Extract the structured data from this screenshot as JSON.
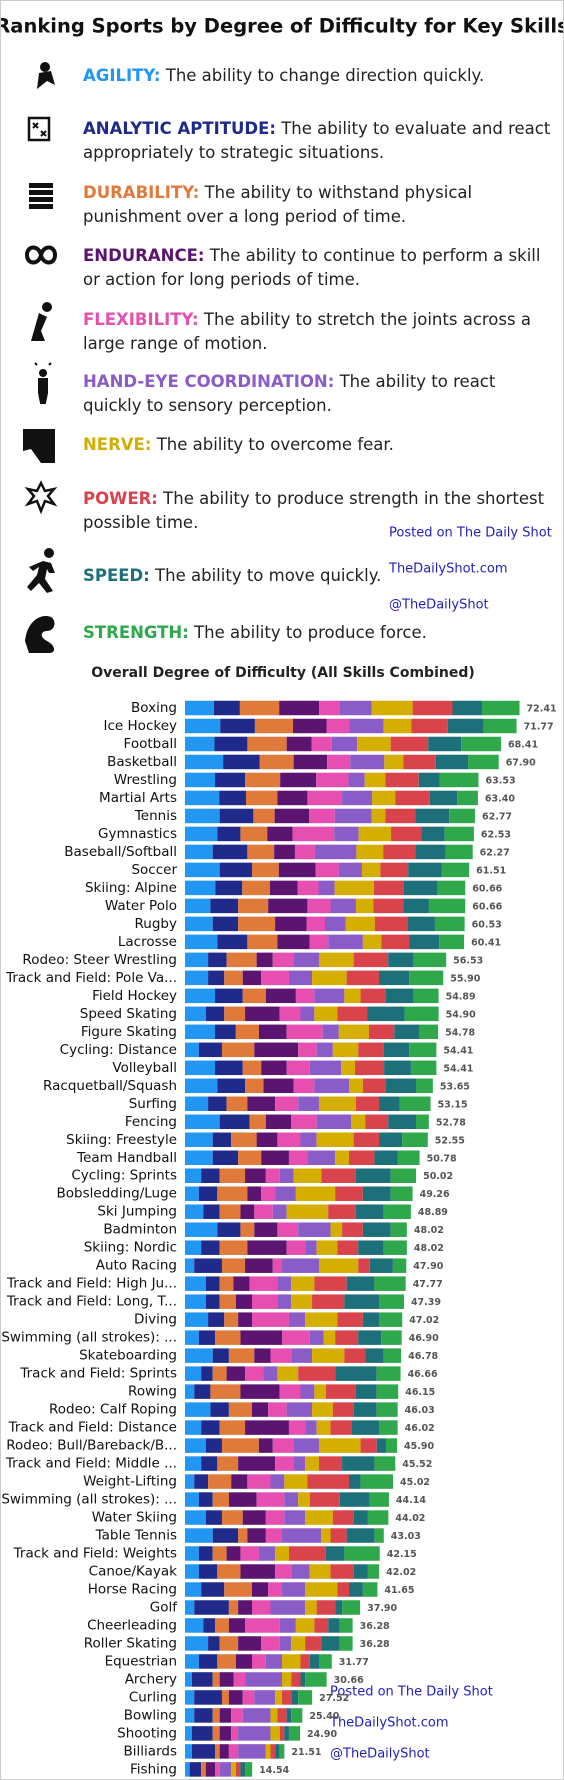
{
  "title": "Ranking Sports by Degree of Difficulty for Key Skills",
  "watermark": [
    "Posted on The Daily Shot",
    "TheDailyShot.com",
    "@TheDailyShot"
  ],
  "chart_data": {
    "type": "stacked_bar_horizontal",
    "title": "Overall Degree of Difficulty (All Skills Combined)",
    "categories": [
      "Boxing",
      "Ice Hockey",
      "Football",
      "Basketball",
      "Wrestling",
      "Martial Arts",
      "Tennis",
      "Gymnastics",
      "Baseball/Softball",
      "Soccer",
      "Skiing: Alpine",
      "Water Polo",
      "Rugby",
      "Lacrosse",
      "Rodeo: Steer Wrestling",
      "Track and Field: Pole Va...",
      "Field Hockey",
      "Speed Skating",
      "Figure Skating",
      "Cycling: Distance",
      "Volleyball",
      "Racquetball/Squash",
      "Surfing",
      "Fencing",
      "Skiing: Freestyle",
      "Team Handball",
      "Cycling: Sprints",
      "Bobsledding/Luge",
      "Ski Jumping",
      "Badminton",
      "Skiing: Nordic",
      "Auto Racing",
      "Track and Field: High Ju...",
      "Track and Field: Long, T...",
      "Diving",
      "Swimming (all strokes): ...",
      "Skateboarding",
      "Track and Field: Sprints",
      "Rowing",
      "Rodeo: Calf Roping",
      "Track and Field: Distance",
      "Rodeo: Bull/Bareback/B...",
      "Track and Field: Middle ...",
      "Weight-Lifting",
      "Swimming (all strokes): ...",
      "Water Skiing",
      "Table Tennis",
      "Track and Field: Weights",
      "Canoe/Kayak",
      "Horse Racing",
      "Golf",
      "Cheerleading",
      "Roller Skating",
      "Equestrian",
      "Archery",
      "Curling",
      "Bowling",
      "Shooting",
      "Billiards",
      "Fishing"
    ],
    "total_labels": [
      "72.41",
      "71.77",
      "68.41",
      "67.90",
      "63.53",
      "63.40",
      "62.77",
      "62.53",
      "62.27",
      "61.51",
      "60.66",
      "60.66",
      "60.53",
      "60.41",
      "56.53",
      "55.90",
      "54.89",
      "54.90",
      "54.78",
      "54.41",
      "54.41",
      "53.65",
      "53.15",
      "52.78",
      "52.55",
      "50.78",
      "50.02",
      "49.26",
      "48.89",
      "48.02",
      "48.02",
      "47.90",
      "47.77",
      "47.39",
      "47.02",
      "46.90",
      "46.78",
      "46.66",
      "46.15",
      "46.03",
      "46.02",
      "45.90",
      "45.52",
      "45.02",
      "44.14",
      "44.02",
      "43.03",
      "42.15",
      "42.02",
      "41.65",
      "37.90",
      "36.28",
      "36.28",
      "31.77",
      "30.66",
      "27.52",
      "25.40",
      "24.90",
      "21.51",
      "14.54"
    ],
    "series": [
      {
        "name": "AGILITY:",
        "description": "The ability to change direction quickly.",
        "color": "#2196f3",
        "values": [
          6.25,
          7.63,
          6.38,
          8.25,
          6.5,
          7.4,
          7.5,
          7.0,
          6.0,
          7.5,
          6.6,
          5.5,
          6.0,
          7.0,
          5.0,
          5.0,
          6.5,
          4.5,
          6.5,
          3.0,
          6.5,
          7.0,
          5.0,
          7.5,
          6.0,
          6.0,
          3.5,
          3.0,
          4.0,
          7.0,
          3.5,
          2.0,
          4.5,
          4.5,
          5.0,
          3.0,
          6.0,
          3.5,
          2.0,
          5.5,
          3.5,
          4.5,
          3.5,
          2.0,
          3.0,
          4.5,
          6.0,
          3.0,
          3.0,
          3.5,
          2.0,
          4.0,
          5.0,
          3.0,
          1.5,
          2.0,
          2.0,
          1.5,
          1.5,
          1.0
        ]
      },
      {
        "name": "ANALYTIC APTITUDE:",
        "description": "The ability to evaluate and react appropriately to strategic situations.",
        "color": "#1f2a8a",
        "values": [
          5.63,
          7.5,
          7.13,
          7.88,
          6.5,
          5.8,
          7.3,
          5.0,
          7.5,
          7.0,
          5.8,
          6.0,
          5.5,
          6.5,
          4.0,
          3.5,
          6.0,
          4.0,
          4.5,
          5.0,
          6.0,
          6.0,
          4.0,
          6.5,
          4.0,
          5.5,
          4.0,
          4.0,
          3.5,
          5.0,
          4.0,
          6.0,
          3.0,
          3.0,
          3.5,
          3.5,
          3.5,
          2.5,
          3.5,
          4.0,
          4.0,
          3.5,
          3.5,
          3.0,
          3.0,
          3.5,
          5.5,
          3.0,
          4.0,
          5.0,
          7.5,
          2.5,
          2.5,
          4.0,
          4.5,
          6.0,
          4.0,
          4.5,
          5.0,
          2.5
        ]
      },
      {
        "name": "DURABILITY:",
        "description": "The ability to withstand physical punishment over a long period of time.",
        "color": "#e07a3a",
        "values": [
          8.5,
          8.25,
          8.5,
          7.38,
          7.6,
          6.8,
          4.6,
          5.8,
          5.8,
          5.8,
          6.0,
          6.5,
          8.0,
          6.5,
          6.5,
          4.0,
          5.0,
          4.5,
          5.0,
          7.0,
          4.0,
          4.0,
          4.5,
          3.5,
          5.5,
          5.0,
          5.5,
          6.5,
          4.5,
          3.0,
          6.0,
          5.0,
          3.0,
          3.5,
          3.0,
          5.5,
          5.5,
          3.0,
          6.5,
          5.0,
          5.5,
          8.0,
          4.5,
          5.0,
          3.5,
          4.5,
          2.0,
          3.0,
          5.0,
          6.0,
          2.0,
          3.0,
          4.0,
          4.0,
          1.5,
          1.5,
          1.5,
          1.5,
          1.0,
          1.0
        ]
      },
      {
        "name": "ENDURANCE:",
        "description": "The ability to continue to perform a skill or action for long periods of time.",
        "color": "#5b1470",
        "values": [
          8.63,
          7.25,
          5.38,
          7.25,
          7.8,
          6.5,
          7.5,
          5.5,
          4.5,
          8.0,
          6.0,
          8.5,
          6.8,
          7.0,
          3.5,
          4.0,
          6.5,
          7.5,
          6.0,
          9.5,
          5.5,
          6.5,
          6.0,
          5.5,
          4.5,
          6.0,
          4.5,
          3.0,
          3.0,
          5.0,
          8.5,
          6.0,
          3.5,
          3.5,
          3.0,
          9.0,
          3.5,
          4.0,
          8.5,
          3.5,
          9.5,
          3.0,
          8.0,
          3.5,
          6.0,
          5.0,
          4.0,
          3.0,
          7.5,
          3.5,
          3.0,
          3.5,
          5.0,
          3.5,
          3.0,
          3.0,
          2.5,
          2.5,
          2.0,
          2.0
        ]
      },
      {
        "name": "FLEXIBILITY:",
        "description": "The ability to stretch the joints across a large range of motion.",
        "color": "#e64fb0",
        "values": [
          4.38,
          4.88,
          4.38,
          5.0,
          7.0,
          7.5,
          5.5,
          9.0,
          4.3,
          5.0,
          4.5,
          5.0,
          4.0,
          4.0,
          4.5,
          6.0,
          4.0,
          4.5,
          7.8,
          4.0,
          5.0,
          4.5,
          5.0,
          5.5,
          5.0,
          4.0,
          3.0,
          3.0,
          4.0,
          4.5,
          4.0,
          2.0,
          6.0,
          5.5,
          8.0,
          6.0,
          4.5,
          4.0,
          4.5,
          4.0,
          3.5,
          4.5,
          4.0,
          5.0,
          6.0,
          4.0,
          3.5,
          4.0,
          3.5,
          3.0,
          4.0,
          7.5,
          4.0,
          3.0,
          2.5,
          2.5,
          2.5,
          1.5,
          2.0,
          1.0
        ]
      },
      {
        "name": "HAND-EYE COORDINATION:",
        "description": "The ability to react quickly to sensory perception.",
        "color": "#8a5cc8",
        "values": [
          7.0,
          7.5,
          5.5,
          7.38,
          3.5,
          6.5,
          8.0,
          5.3,
          9.0,
          5.0,
          3.5,
          5.5,
          4.5,
          7.5,
          5.5,
          5.0,
          6.5,
          3.0,
          3.5,
          3.5,
          6.8,
          7.5,
          4.5,
          7.5,
          3.5,
          6.0,
          3.0,
          4.5,
          3.0,
          7.0,
          2.5,
          8.0,
          3.0,
          3.0,
          3.5,
          3.0,
          4.5,
          3.0,
          3.0,
          5.5,
          2.5,
          5.5,
          2.5,
          3.0,
          3.0,
          4.5,
          8.5,
          3.5,
          4.0,
          5.0,
          7.5,
          3.5,
          2.5,
          3.5,
          8.0,
          4.5,
          6.0,
          7.0,
          6.0,
          2.5
        ]
      },
      {
        "name": "NERVE:",
        "description": "The ability to overcome fear.",
        "color": "#d4ae00",
        "values": [
          8.88,
          6.0,
          7.25,
          4.13,
          4.5,
          5.0,
          3.0,
          7.0,
          5.8,
          4.0,
          8.5,
          3.8,
          6.3,
          4.0,
          7.5,
          7.5,
          3.5,
          5.0,
          6.5,
          5.5,
          3.0,
          3.0,
          8.0,
          3.0,
          8.0,
          3.0,
          6.0,
          8.5,
          9.0,
          2.5,
          4.5,
          8.5,
          5.0,
          4.5,
          7.0,
          2.5,
          7.0,
          4.5,
          2.5,
          4.5,
          3.0,
          9.0,
          3.0,
          5.0,
          2.5,
          6.0,
          2.0,
          3.0,
          4.5,
          7.0,
          2.5,
          4.0,
          3.0,
          4.0,
          2.0,
          1.5,
          1.5,
          2.0,
          1.0,
          1.0
        ]
      },
      {
        "name": "POWER:",
        "description": "The ability to produce strength in the shortest possible time.",
        "color": "#d9434c",
        "values": [
          8.63,
          7.88,
          8.13,
          7.0,
          7.2,
          7.5,
          6.5,
          6.6,
          7.0,
          6.0,
          6.5,
          6.5,
          7.0,
          6.0,
          7.5,
          7.0,
          5.5,
          6.5,
          5.5,
          5.5,
          6.3,
          5.0,
          5.0,
          5.0,
          5.5,
          5.5,
          7.5,
          6.0,
          6.0,
          4.5,
          4.5,
          2.5,
          7.0,
          7.0,
          5.5,
          5.0,
          4.5,
          8.0,
          6.5,
          4.5,
          4.5,
          3.5,
          5.0,
          9.0,
          6.5,
          4.5,
          3.5,
          8.0,
          5.0,
          2.5,
          4.0,
          3.0,
          3.5,
          2.0,
          2.0,
          2.0,
          2.0,
          1.0,
          1.0,
          1.0
        ]
      },
      {
        "name": "SPEED:",
        "description": "The ability to move quickly.",
        "color": "#1d6f7a",
        "values": [
          6.38,
          7.75,
          7.13,
          7.0,
          4.5,
          5.9,
          7.3,
          5.0,
          6.5,
          7.3,
          7.3,
          5.5,
          6.0,
          6.5,
          5.5,
          6.5,
          6.0,
          8.0,
          5.5,
          5.5,
          5.8,
          6.5,
          4.5,
          6.0,
          5.0,
          5.0,
          7.5,
          6.0,
          6.0,
          6.0,
          5.5,
          5.0,
          6.0,
          7.5,
          3.5,
          5.0,
          4.0,
          9.0,
          4.5,
          5.0,
          6.0,
          2.0,
          7.0,
          2.5,
          6.5,
          3.0,
          6.0,
          4.0,
          3.0,
          3.0,
          1.5,
          2.5,
          4.0,
          2.0,
          1.0,
          1.5,
          1.0,
          1.0,
          1.0,
          1.0
        ]
      },
      {
        "name": "STRENGTH:",
        "description": "The ability to produce force.",
        "color": "#2ea84a",
        "values": [
          8.13,
          7.13,
          8.63,
          6.63,
          8.43,
          4.5,
          5.57,
          6.33,
          5.87,
          5.91,
          5.96,
          7.86,
          6.43,
          5.41,
          7.03,
          7.4,
          5.39,
          7.4,
          3.98,
          5.91,
          5.51,
          3.65,
          6.65,
          2.78,
          5.55,
          4.78,
          5.52,
          4.76,
          5.89,
          3.52,
          5.02,
          2.9,
          6.77,
          5.39,
          5.02,
          4.4,
          3.78,
          5.16,
          4.65,
          4.53,
          4.02,
          2.4,
          4.52,
          7.02,
          4.14,
          4.52,
          2.03,
          7.65,
          2.52,
          3.15,
          3.9,
          2.78,
          2.78,
          2.77,
          4.66,
          3.02,
          2.4,
          2.4,
          1.01,
          1.54
        ]
      }
    ]
  }
}
